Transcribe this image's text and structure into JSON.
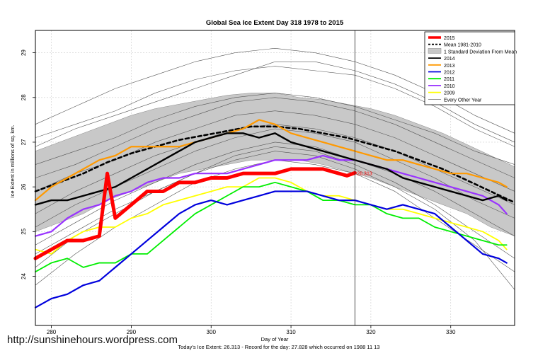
{
  "chart_data": {
    "type": "line",
    "title": "Global Sea Ice Extent Day 318 1978 to 2015",
    "xlabel": "Day of Year",
    "ylabel": "Ice Extent in millions of sq. km.",
    "xlim": [
      278,
      338
    ],
    "ylim": [
      22.9,
      29.5
    ],
    "xticks": [
      280,
      290,
      300,
      310,
      320,
      330
    ],
    "yticks": [
      24,
      25,
      26,
      27,
      28,
      29
    ],
    "marker_day": 318,
    "marker_label": "26.313",
    "footer": "Today's Ice Extent: 26.313  -  Record for the day: 27.828 which occurred on 1988 11 13",
    "legend": [
      {
        "label": "2015",
        "color": "#ff0000",
        "style": "thick"
      },
      {
        "label": "Mean 1981-2010",
        "color": "#000000",
        "style": "dashed"
      },
      {
        "label": "1 Standard Deviation From Mean",
        "color": "#bbbbbb",
        "style": "band"
      },
      {
        "label": "2014",
        "color": "#000000",
        "style": "solid"
      },
      {
        "label": "2013",
        "color": "#ff9900",
        "style": "solid"
      },
      {
        "label": "2012",
        "color": "#0000dd",
        "style": "solid"
      },
      {
        "label": "2011",
        "color": "#00ee00",
        "style": "solid"
      },
      {
        "label": "2010",
        "color": "#9933ff",
        "style": "solid"
      },
      {
        "label": "2009",
        "color": "#ffff00",
        "style": "solid"
      },
      {
        "label": "Every Other Year",
        "color": "#555555",
        "style": "thin"
      }
    ],
    "band": {
      "x": [
        278,
        281,
        284,
        287,
        290,
        293,
        296,
        299,
        302,
        305,
        308,
        311,
        314,
        317,
        320,
        323,
        326,
        329,
        332,
        335,
        338
      ],
      "lower": [
        25.0,
        25.2,
        25.4,
        25.7,
        25.9,
        26.1,
        26.3,
        26.4,
        26.5,
        26.6,
        26.6,
        26.6,
        26.5,
        26.35,
        26.2,
        26.0,
        25.8,
        25.6,
        25.4,
        25.1,
        24.9
      ],
      "upper": [
        26.8,
        27.0,
        27.2,
        27.4,
        27.6,
        27.75,
        27.85,
        27.95,
        28.05,
        28.1,
        28.1,
        28.0,
        27.95,
        27.85,
        27.75,
        27.6,
        27.4,
        27.2,
        26.95,
        26.7,
        26.45
      ]
    },
    "series": [
      {
        "name": "Every Other Year",
        "color": "#555555",
        "width": 0.6,
        "x": [
          278,
          283,
          288,
          293,
          298,
          303,
          308,
          313,
          318,
          323,
          328,
          333,
          338
        ],
        "values": [
          26.5,
          26.8,
          27.1,
          27.5,
          27.8,
          28.0,
          28.1,
          28.0,
          27.8,
          27.5,
          27.2,
          26.8,
          26.5
        ]
      },
      {
        "name": "Every Other Year",
        "color": "#555555",
        "width": 0.6,
        "x": [
          278,
          283,
          288,
          293,
          298,
          303,
          308,
          313,
          318,
          323,
          328,
          333,
          338
        ],
        "values": [
          25.4,
          25.9,
          26.3,
          26.7,
          27.0,
          27.3,
          27.4,
          27.3,
          27.1,
          26.8,
          26.4,
          26.0,
          25.6
        ]
      },
      {
        "name": "Every Other Year",
        "color": "#555555",
        "width": 0.6,
        "x": [
          278,
          283,
          288,
          293,
          298,
          303,
          308,
          313,
          318,
          323,
          328,
          333,
          338
        ],
        "values": [
          24.7,
          25.2,
          25.7,
          26.1,
          26.5,
          26.8,
          27.0,
          26.9,
          26.6,
          26.3,
          25.9,
          25.4,
          24.9
        ]
      },
      {
        "name": "Every Other Year",
        "color": "#555555",
        "width": 0.6,
        "x": [
          278,
          283,
          288,
          293,
          298,
          303,
          308,
          313,
          318,
          323,
          328,
          333,
          338
        ],
        "values": [
          27.1,
          27.4,
          27.7,
          28.1,
          28.4,
          28.6,
          28.7,
          28.6,
          28.5,
          28.2,
          27.8,
          27.3,
          26.9
        ]
      },
      {
        "name": "Every Other Year",
        "color": "#555555",
        "width": 0.6,
        "x": [
          278,
          283,
          288,
          293,
          298,
          303,
          308,
          313,
          318,
          323,
          328,
          333,
          338
        ],
        "values": [
          24.2,
          24.9,
          25.4,
          25.9,
          26.3,
          26.6,
          26.8,
          26.7,
          26.4,
          26.0,
          25.5,
          24.8,
          23.7
        ]
      },
      {
        "name": "Every Other Year",
        "color": "#555555",
        "width": 0.6,
        "x": [
          278,
          283,
          288,
          293,
          298,
          303,
          308,
          313,
          318,
          323,
          328,
          333,
          338
        ],
        "values": [
          25.9,
          26.3,
          26.6,
          27.0,
          27.3,
          27.6,
          27.7,
          27.6,
          27.4,
          27.1,
          26.7,
          26.3,
          25.9
        ]
      },
      {
        "name": "Every Other Year",
        "color": "#555555",
        "width": 0.6,
        "x": [
          278,
          283,
          288,
          293,
          298,
          303,
          308,
          313,
          318,
          323,
          328,
          333,
          338
        ],
        "values": [
          26.9,
          27.3,
          27.6,
          27.9,
          28.2,
          28.5,
          28.8,
          28.8,
          28.6,
          28.3,
          27.9,
          27.4,
          27.0
        ]
      },
      {
        "name": "Every Other Year",
        "color": "#555555",
        "width": 0.6,
        "x": [
          278,
          283,
          288,
          293,
          298,
          303,
          308,
          313,
          318,
          323,
          328,
          333,
          338
        ],
        "values": [
          23.8,
          24.5,
          25.1,
          25.6,
          26.1,
          26.4,
          26.6,
          26.5,
          26.3,
          25.9,
          25.3,
          24.7,
          24.1
        ]
      },
      {
        "name": "Every Other Year",
        "color": "#555555",
        "width": 0.6,
        "x": [
          278,
          283,
          288,
          293,
          298,
          303,
          308,
          313,
          318,
          323,
          328,
          333,
          338
        ],
        "values": [
          26.2,
          26.5,
          26.9,
          27.3,
          27.6,
          27.9,
          28.0,
          27.9,
          27.7,
          27.4,
          27.0,
          26.6,
          26.2
        ]
      },
      {
        "name": "Every Other Year",
        "color": "#555555",
        "width": 0.6,
        "x": [
          278,
          283,
          288,
          293,
          298,
          303,
          308,
          313,
          318,
          323,
          328,
          333,
          338
        ],
        "values": [
          25.1,
          25.6,
          26.0,
          26.4,
          26.8,
          27.1,
          27.3,
          27.2,
          27.0,
          26.6,
          26.2,
          25.7,
          25.3
        ]
      },
      {
        "name": "Every Other Year",
        "color": "#555555",
        "width": 0.6,
        "x": [
          278,
          283,
          288,
          293,
          298,
          303,
          308,
          313,
          318,
          323,
          328,
          333,
          338
        ],
        "values": [
          27.4,
          27.8,
          28.2,
          28.5,
          28.8,
          29.0,
          29.1,
          29.0,
          28.8,
          28.5,
          28.1,
          27.6,
          27.2
        ]
      },
      {
        "name": "Every Other Year",
        "color": "#555555",
        "width": 0.6,
        "x": [
          278,
          283,
          288,
          293,
          298,
          303,
          308,
          313,
          318,
          323,
          328,
          333,
          338
        ],
        "values": [
          24.5,
          25.0,
          25.5,
          25.9,
          26.3,
          26.7,
          26.9,
          26.8,
          26.5,
          26.1,
          25.6,
          25.0,
          24.4
        ]
      },
      {
        "name": "Mean 1981-2010",
        "color": "#000000",
        "width": 2.6,
        "dash": "5,4",
        "x": [
          278,
          281,
          284,
          287,
          290,
          293,
          296,
          299,
          302,
          305,
          308,
          311,
          314,
          317,
          320,
          323,
          326,
          329,
          332,
          335,
          338
        ],
        "values": [
          25.9,
          26.1,
          26.3,
          26.55,
          26.75,
          26.9,
          27.05,
          27.15,
          27.25,
          27.35,
          27.35,
          27.3,
          27.2,
          27.1,
          26.95,
          26.8,
          26.6,
          26.4,
          26.15,
          25.9,
          25.65
        ]
      },
      {
        "name": "2009",
        "color": "#ffff00",
        "width": 1.8,
        "x": [
          278,
          280,
          282,
          284,
          286,
          288,
          290,
          292,
          294,
          296,
          298,
          300,
          302,
          304,
          306,
          308,
          310,
          312,
          314,
          316,
          318,
          320,
          322,
          324,
          326,
          328,
          330,
          332,
          334,
          336,
          337
        ],
        "values": [
          24.6,
          24.5,
          24.8,
          25.0,
          25.1,
          25.1,
          25.3,
          25.4,
          25.6,
          25.7,
          25.8,
          25.9,
          26.0,
          26.0,
          26.2,
          26.2,
          26.1,
          25.9,
          25.8,
          25.8,
          25.7,
          25.6,
          25.5,
          25.5,
          25.4,
          25.3,
          25.2,
          25.1,
          25.0,
          24.8,
          24.6
        ]
      },
      {
        "name": "2011",
        "color": "#00ee00",
        "width": 1.8,
        "x": [
          278,
          280,
          282,
          284,
          286,
          288,
          290,
          292,
          294,
          296,
          298,
          300,
          302,
          304,
          306,
          308,
          310,
          312,
          314,
          316,
          318,
          320,
          322,
          324,
          326,
          328,
          330,
          332,
          334,
          336,
          337
        ],
        "values": [
          24.1,
          24.3,
          24.4,
          24.2,
          24.3,
          24.3,
          24.5,
          24.5,
          24.8,
          25.1,
          25.4,
          25.6,
          25.8,
          26.0,
          26.0,
          26.1,
          26.0,
          25.9,
          25.7,
          25.7,
          25.6,
          25.6,
          25.4,
          25.3,
          25.3,
          25.1,
          25.0,
          24.9,
          24.8,
          24.7,
          24.7
        ]
      },
      {
        "name": "2012",
        "color": "#0000dd",
        "width": 2.2,
        "x": [
          278,
          280,
          282,
          284,
          286,
          288,
          290,
          292,
          294,
          296,
          298,
          300,
          302,
          304,
          306,
          308,
          310,
          312,
          314,
          316,
          318,
          320,
          322,
          324,
          326,
          328,
          330,
          332,
          334,
          336,
          337
        ],
        "values": [
          23.3,
          23.5,
          23.6,
          23.8,
          23.9,
          24.2,
          24.5,
          24.8,
          25.1,
          25.4,
          25.6,
          25.7,
          25.6,
          25.7,
          25.8,
          25.9,
          25.9,
          25.9,
          25.8,
          25.7,
          25.7,
          25.6,
          25.5,
          25.6,
          25.5,
          25.4,
          25.1,
          24.8,
          24.5,
          24.4,
          24.3
        ]
      },
      {
        "name": "2010",
        "color": "#9933ff",
        "width": 2.2,
        "x": [
          278,
          280,
          282,
          284,
          286,
          288,
          290,
          292,
          294,
          296,
          298,
          300,
          302,
          304,
          306,
          308,
          310,
          312,
          314,
          316,
          318,
          320,
          322,
          324,
          326,
          328,
          330,
          332,
          334,
          336,
          337
        ],
        "values": [
          24.9,
          25.0,
          25.3,
          25.5,
          25.6,
          25.8,
          25.9,
          26.1,
          26.2,
          26.2,
          26.3,
          26.3,
          26.3,
          26.4,
          26.5,
          26.6,
          26.6,
          26.6,
          26.7,
          26.6,
          26.6,
          26.5,
          26.4,
          26.3,
          26.2,
          26.1,
          26.0,
          25.9,
          25.8,
          25.6,
          25.4
        ]
      },
      {
        "name": "2013",
        "color": "#ff9900",
        "width": 2.2,
        "x": [
          278,
          280,
          282,
          284,
          286,
          288,
          290,
          292,
          294,
          296,
          298,
          300,
          302,
          304,
          306,
          308,
          310,
          312,
          314,
          316,
          318,
          320,
          322,
          324,
          326,
          328,
          330,
          332,
          334,
          336,
          337
        ],
        "values": [
          25.7,
          26.0,
          26.2,
          26.4,
          26.6,
          26.7,
          26.9,
          26.9,
          26.9,
          26.9,
          27.0,
          27.1,
          27.2,
          27.3,
          27.5,
          27.4,
          27.2,
          27.1,
          27.0,
          26.9,
          26.8,
          26.7,
          26.6,
          26.6,
          26.5,
          26.4,
          26.3,
          26.3,
          26.2,
          26.1,
          26.0
        ]
      },
      {
        "name": "2014",
        "color": "#000000",
        "width": 2.4,
        "x": [
          278,
          280,
          282,
          284,
          286,
          288,
          290,
          292,
          294,
          296,
          298,
          300,
          302,
          304,
          306,
          308,
          310,
          312,
          314,
          316,
          318,
          320,
          322,
          324,
          326,
          328,
          330,
          332,
          334,
          336,
          337
        ],
        "values": [
          25.6,
          25.7,
          25.7,
          25.8,
          25.9,
          26.0,
          26.2,
          26.4,
          26.6,
          26.8,
          27.0,
          27.1,
          27.2,
          27.2,
          27.1,
          27.2,
          27.0,
          26.9,
          26.8,
          26.7,
          26.6,
          26.5,
          26.4,
          26.2,
          26.1,
          26.0,
          25.9,
          25.8,
          25.7,
          25.8,
          25.7
        ]
      },
      {
        "name": "2015",
        "color": "#ff0000",
        "width": 5,
        "x": [
          278,
          280,
          282,
          284,
          286,
          287,
          288,
          290,
          292,
          294,
          296,
          298,
          300,
          302,
          304,
          306,
          308,
          310,
          312,
          314,
          316,
          317,
          318
        ],
        "values": [
          24.4,
          24.6,
          24.8,
          24.8,
          24.9,
          26.3,
          25.3,
          25.6,
          25.9,
          25.9,
          26.1,
          26.1,
          26.2,
          26.2,
          26.3,
          26.3,
          26.3,
          26.4,
          26.4,
          26.4,
          26.3,
          26.25,
          26.313
        ]
      }
    ]
  },
  "watermark": "http://sunshinehours.wordpress.com"
}
